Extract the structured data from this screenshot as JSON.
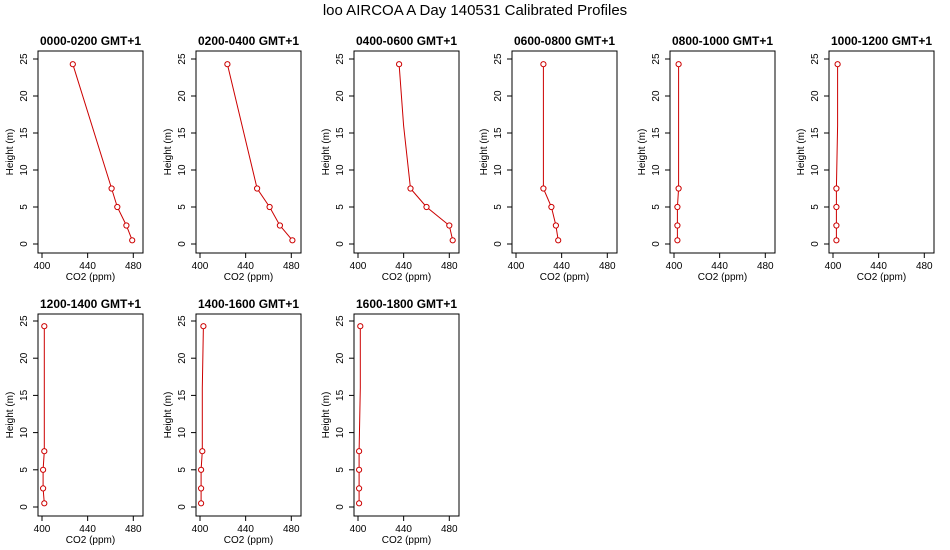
{
  "title": "loo AIRCOA A  Day 140531  Calibrated Profiles",
  "colors": {
    "series": "#cc0000",
    "axis": "#000000"
  },
  "chart_data": [
    {
      "type": "line",
      "title": "0000-0200 GMT+1",
      "xlabel": "CO2 (ppm)",
      "ylabel": "Height (m)",
      "xlim": [
        400,
        485
      ],
      "ylim": [
        0,
        25
      ],
      "xticks": [
        400,
        440,
        480
      ],
      "yticks": [
        0,
        5,
        10,
        15,
        20,
        25
      ],
      "points": [
        [
          479,
          0.5
        ],
        [
          474,
          2.5
        ],
        [
          466,
          5.0
        ],
        [
          461,
          7.5
        ],
        [
          427,
          24.3
        ]
      ]
    },
    {
      "type": "line",
      "title": "0200-0400 GMT+1",
      "xlabel": "CO2 (ppm)",
      "ylabel": "Height (m)",
      "xlim": [
        400,
        485
      ],
      "ylim": [
        0,
        25
      ],
      "xticks": [
        400,
        440,
        480
      ],
      "yticks": [
        0,
        5,
        10,
        15,
        20,
        25
      ],
      "points": [
        [
          481,
          0.5
        ],
        [
          470,
          2.5
        ],
        [
          461,
          5.0
        ],
        [
          450,
          7.5
        ],
        [
          424,
          24.3
        ]
      ]
    },
    {
      "type": "line",
      "title": "0400-0600 GMT+1",
      "xlabel": "CO2 (ppm)",
      "ylabel": "Height (m)",
      "xlim": [
        400,
        485
      ],
      "ylim": [
        0,
        25
      ],
      "xticks": [
        400,
        440,
        480
      ],
      "yticks": [
        0,
        5,
        10,
        15,
        20,
        25
      ],
      "points": [
        [
          483,
          0.5
        ],
        [
          480,
          2.5
        ],
        [
          460,
          5.0
        ],
        [
          446,
          7.5
        ],
        [
          440,
          16.0
        ],
        [
          436,
          24.3
        ]
      ]
    },
    {
      "type": "line",
      "title": "0600-0800 GMT+1",
      "xlabel": "CO2 (ppm)",
      "ylabel": "Height (m)",
      "xlim": [
        400,
        485
      ],
      "ylim": [
        0,
        25
      ],
      "xticks": [
        400,
        440,
        480
      ],
      "yticks": [
        0,
        5,
        10,
        15,
        20,
        25
      ],
      "points": [
        [
          437,
          0.5
        ],
        [
          435,
          2.5
        ],
        [
          431,
          5.0
        ],
        [
          424,
          7.5
        ],
        [
          424,
          16.0
        ],
        [
          424,
          24.3
        ]
      ]
    },
    {
      "type": "line",
      "title": "0800-1000 GMT+1",
      "xlabel": "CO2 (ppm)",
      "ylabel": "Height (m)",
      "xlim": [
        400,
        485
      ],
      "ylim": [
        0,
        25
      ],
      "xticks": [
        400,
        440,
        480
      ],
      "yticks": [
        0,
        5,
        10,
        15,
        20,
        25
      ],
      "points": [
        [
          403,
          0.5
        ],
        [
          403,
          2.5
        ],
        [
          403,
          5.0
        ],
        [
          404,
          7.5
        ],
        [
          404,
          16.0
        ],
        [
          404,
          24.3
        ]
      ]
    },
    {
      "type": "line",
      "title": "1000-1200 GMT+1",
      "xlabel": "CO2 (ppm)",
      "ylabel": "Height (m)",
      "xlim": [
        400,
        485
      ],
      "ylim": [
        0,
        25
      ],
      "xticks": [
        400,
        440,
        480
      ],
      "yticks": [
        0,
        5,
        10,
        15,
        20,
        25
      ],
      "points": [
        [
          403,
          0.5
        ],
        [
          403,
          2.5
        ],
        [
          403,
          5.0
        ],
        [
          403,
          7.5
        ],
        [
          404,
          16.0
        ],
        [
          404,
          24.3
        ]
      ]
    },
    {
      "type": "line",
      "title": "1200-1400 GMT+1",
      "xlabel": "CO2 (ppm)",
      "ylabel": "Height (m)",
      "xlim": [
        400,
        485
      ],
      "ylim": [
        0,
        25
      ],
      "xticks": [
        400,
        440,
        480
      ],
      "yticks": [
        0,
        5,
        10,
        15,
        20,
        25
      ],
      "points": [
        [
          402,
          0.5
        ],
        [
          401,
          2.5
        ],
        [
          401,
          5.0
        ],
        [
          402,
          7.5
        ],
        [
          402,
          16.0
        ],
        [
          402,
          24.3
        ]
      ]
    },
    {
      "type": "line",
      "title": "1400-1600 GMT+1",
      "xlabel": "CO2 (ppm)",
      "ylabel": "Height (m)",
      "xlim": [
        400,
        485
      ],
      "ylim": [
        0,
        25
      ],
      "xticks": [
        400,
        440,
        480
      ],
      "yticks": [
        0,
        5,
        10,
        15,
        20,
        25
      ],
      "points": [
        [
          401,
          0.5
        ],
        [
          401,
          2.5
        ],
        [
          401,
          5.0
        ],
        [
          402,
          7.5
        ],
        [
          402,
          16.0
        ],
        [
          403,
          24.3
        ]
      ]
    },
    {
      "type": "line",
      "title": "1600-1800 GMT+1",
      "xlabel": "CO2 (ppm)",
      "ylabel": "Height (m)",
      "xlim": [
        400,
        485
      ],
      "ylim": [
        0,
        25
      ],
      "xticks": [
        400,
        440,
        480
      ],
      "yticks": [
        0,
        5,
        10,
        15,
        20,
        25
      ],
      "points": [
        [
          401,
          0.5
        ],
        [
          401,
          2.5
        ],
        [
          401,
          5.0
        ],
        [
          401,
          7.5
        ],
        [
          402,
          16.0
        ],
        [
          402,
          24.3
        ]
      ]
    }
  ]
}
